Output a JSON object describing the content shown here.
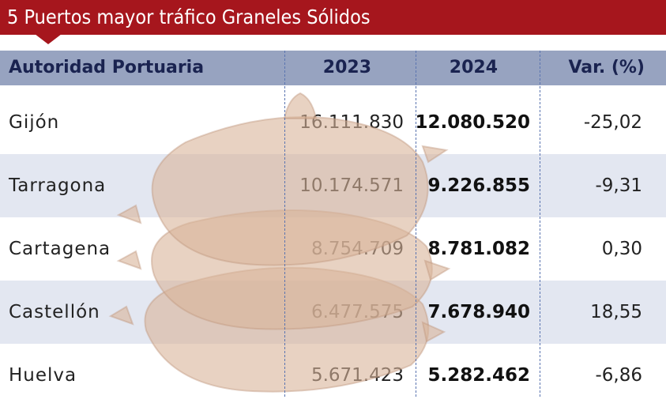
{
  "title": "5 Puertos mayor tráfico Graneles Sólidos",
  "chart_data": {
    "type": "table",
    "title": "5 Puertos mayor tráfico Graneles Sólidos",
    "columns": [
      "Autoridad Portuaria",
      "2023",
      "2024",
      "Var. (%)"
    ],
    "rows": [
      {
        "name": "Gijón",
        "y2023": "16.111.830",
        "y2024": "12.080.520",
        "var": "-25,02"
      },
      {
        "name": "Tarragona",
        "y2023": "10.174.571",
        "y2024": "9.226.855",
        "var": "-9,31"
      },
      {
        "name": "Cartagena",
        "y2023": "8.754.709",
        "y2024": "8.781.082",
        "var": "0,30"
      },
      {
        "name": "Castellón",
        "y2023": "6.477.575",
        "y2024": "7.678.940",
        "var": "18,55"
      },
      {
        "name": "Huelva",
        "y2023": "5.671.423",
        "y2024": "5.282.462",
        "var": "-6,86"
      }
    ]
  },
  "colors": {
    "title_bg": "#a6161d",
    "header_bg": "#97a3c0",
    "header_text": "#1a2350",
    "alt_row_bg": "#e3e7f1",
    "divider": "#5a74b0",
    "sack": "#d9b49a"
  },
  "decoration": {
    "background_icon": "grain-sacks-icon"
  }
}
